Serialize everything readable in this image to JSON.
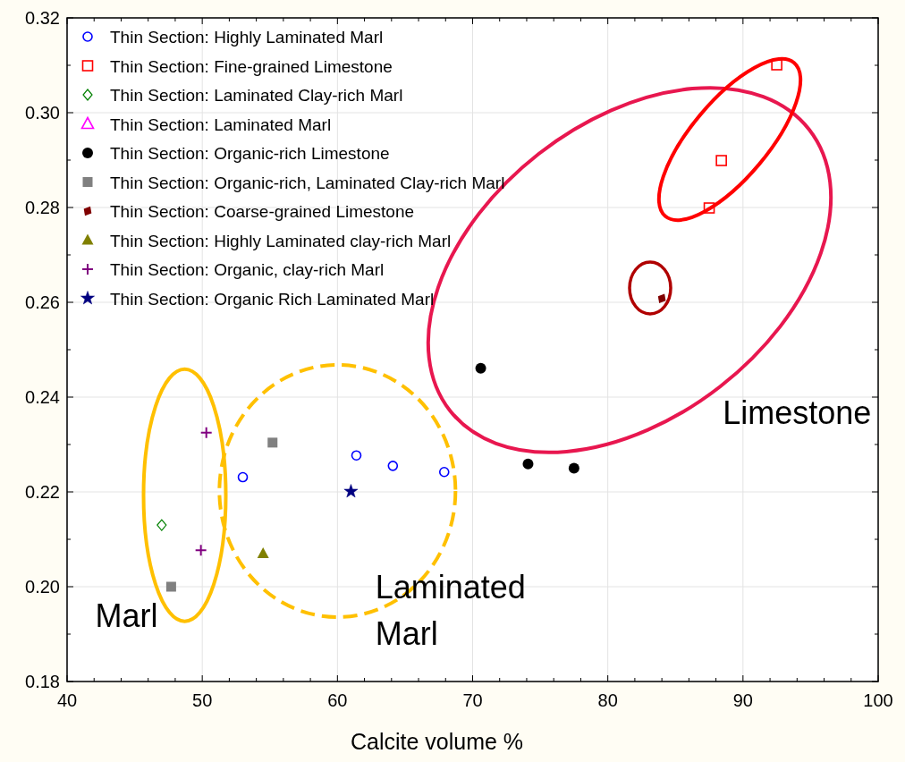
{
  "chart_data": {
    "type": "scatter",
    "xlabel": "Calcite volume %",
    "xlim": [
      40,
      100
    ],
    "xticks": [
      40,
      50,
      60,
      70,
      80,
      90,
      100
    ],
    "ylim": [
      0.18,
      0.32
    ],
    "yticks": [
      {
        "value": 0.18,
        "label": "0.18"
      },
      {
        "value": 0.2,
        "label": "0.20"
      },
      {
        "value": 0.22,
        "label": "0.22"
      },
      {
        "value": 0.24,
        "label": "0.24"
      },
      {
        "value": 0.26,
        "label": "0.26"
      },
      {
        "value": 0.28,
        "label": "0.28"
      },
      {
        "value": 0.3,
        "label": "0.30"
      },
      {
        "value": 0.32,
        "label": "0.32"
      }
    ],
    "grid": true,
    "legend": "top left",
    "annotations": [
      "Marl",
      "Laminated Marl",
      "Limestone"
    ],
    "series": [
      {
        "name": "Thin Section: Highly Laminated Marl",
        "color": "#0000ff",
        "marker": "circle",
        "x": [
          53.0,
          61.4,
          64.1,
          67.9
        ],
        "values": [
          0.2231,
          0.2277,
          0.2255,
          0.2242
        ]
      },
      {
        "name": "Thin Section: Fine-grained Limestone",
        "color": "#ff0000",
        "marker": "square",
        "x": [
          92.5,
          88.4,
          87.5
        ],
        "values": [
          0.3101,
          0.2899,
          0.2799
        ]
      },
      {
        "name": "Thin Section: Laminated Clay-rich Marl",
        "color": "#008000",
        "marker": "diamond",
        "x": [
          47.0
        ],
        "values": [
          0.213
        ]
      },
      {
        "name": "Thin Section: Laminated Marl",
        "color": "#ff00ff",
        "marker": "triangle"
      },
      {
        "name": "Thin Section: Organic-rich Limestone",
        "color": "#000000",
        "marker": "circle",
        "x": [
          70.6,
          74.1,
          77.5
        ],
        "values": [
          0.2461,
          0.2259,
          0.225
        ]
      },
      {
        "name": "Thin Section: Organic-rich, Laminated Clay-rich Marl",
        "color": "#808080",
        "marker": "square",
        "x": [
          55.2,
          47.7
        ],
        "values": [
          0.2304,
          0.2
        ]
      },
      {
        "name": "Thin Section: Coarse-grained Limestone",
        "color": "#800000",
        "marker": "diamond",
        "x": [
          84.0
        ],
        "values": [
          0.2608
        ]
      },
      {
        "name": "Thin Section: Highly Laminated clay-rich Marl",
        "color": "#808000",
        "marker": "triangle",
        "x": [
          54.5
        ],
        "values": [
          0.207
        ]
      },
      {
        "name": "Thin Section: Organic, clay-rich Marl",
        "color": "#800080",
        "marker": "cross",
        "x": [
          50.3,
          49.9
        ],
        "values": [
          0.2325,
          0.2077
        ]
      },
      {
        "name": "Thin Section: Organic Rich Laminated Marl",
        "color": "#000080",
        "marker": "star",
        "x": [
          61.0
        ],
        "values": [
          0.2201
        ]
      }
    ]
  }
}
